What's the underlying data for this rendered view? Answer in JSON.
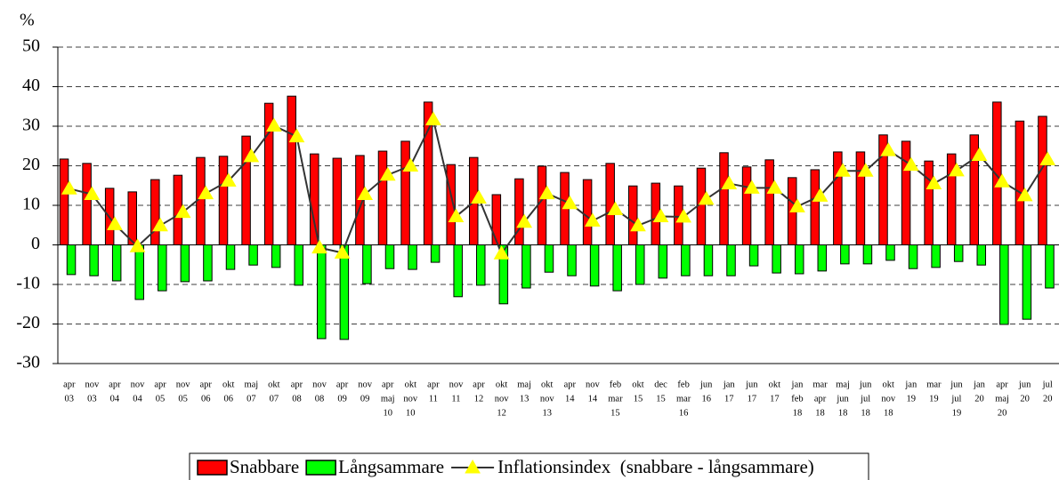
{
  "chart_data": {
    "type": "bar-line",
    "y_label": "%",
    "categories": [
      [
        "apr",
        "03"
      ],
      [
        "nov",
        "03"
      ],
      [
        "apr",
        "04"
      ],
      [
        "nov",
        "04"
      ],
      [
        "apr",
        "05"
      ],
      [
        "nov",
        "05"
      ],
      [
        "apr",
        "06"
      ],
      [
        "okt",
        "06"
      ],
      [
        "maj",
        "07"
      ],
      [
        "okt",
        "07"
      ],
      [
        "apr",
        "08"
      ],
      [
        "nov",
        "08"
      ],
      [
        "apr",
        "09"
      ],
      [
        "nov",
        "09"
      ],
      [
        "apr",
        "maj",
        "10"
      ],
      [
        "okt",
        "nov",
        "10"
      ],
      [
        "apr",
        "11"
      ],
      [
        "nov",
        "11"
      ],
      [
        "apr",
        "12"
      ],
      [
        "okt",
        "nov",
        "12"
      ],
      [
        "maj",
        "13"
      ],
      [
        "okt",
        "nov",
        "13"
      ],
      [
        "apr",
        "14"
      ],
      [
        "nov",
        "14"
      ],
      [
        "feb",
        "mar",
        "15"
      ],
      [
        "okt",
        "15"
      ],
      [
        "dec",
        "15"
      ],
      [
        "feb",
        "mar",
        "16"
      ],
      [
        "jun",
        "16"
      ],
      [
        "jan",
        "17"
      ],
      [
        "jun",
        "17"
      ],
      [
        "okt",
        "17"
      ],
      [
        "jan",
        "feb",
        "18"
      ],
      [
        "mar",
        "apr",
        "18"
      ],
      [
        "maj",
        "jun",
        "18"
      ],
      [
        "jun",
        "jul",
        "18"
      ],
      [
        "okt",
        "nov",
        "18"
      ],
      [
        "jan",
        "19"
      ],
      [
        "mar",
        "19"
      ],
      [
        "jun",
        "jul",
        "19"
      ],
      [
        "jan",
        "20"
      ],
      [
        "apr",
        "maj",
        "20"
      ],
      [
        "jun",
        "20"
      ],
      [
        "jul",
        "20"
      ]
    ],
    "series": [
      {
        "name": "Snabbare",
        "kind": "bar",
        "color": "#ff0000",
        "values": [
          21.7,
          20.6,
          14.3,
          13.4,
          16.5,
          17.6,
          22.1,
          22.4,
          27.5,
          35.8,
          37.6,
          23.0,
          21.9,
          22.6,
          23.7,
          26.2,
          36.1,
          20.3,
          22.1,
          12.7,
          16.7,
          19.9,
          18.3,
          16.5,
          20.6,
          14.9,
          15.6,
          14.9,
          19.4,
          23.3,
          19.7,
          21.5,
          17.0,
          19.0,
          23.5,
          23.5,
          27.8,
          26.2,
          21.2,
          23.0,
          27.8,
          36.1,
          31.3,
          32.5
        ]
      },
      {
        "name": "Långsammare",
        "kind": "bar",
        "color": "#00ff00",
        "values": [
          -7.5,
          -7.8,
          -9.1,
          -13.8,
          -11.6,
          -9.3,
          -9.1,
          -6.2,
          -5.1,
          -5.7,
          -10.2,
          -23.7,
          -23.9,
          -9.8,
          -6.0,
          -6.2,
          -4.4,
          -13.1,
          -10.2,
          -14.9,
          -10.9,
          -6.9,
          -7.8,
          -10.4,
          -11.6,
          -10.0,
          -8.4,
          -7.8,
          -7.8,
          -7.8,
          -5.3,
          -7.1,
          -7.3,
          -6.6,
          -4.8,
          -4.8,
          -3.9,
          -6.0,
          -5.7,
          -4.2,
          -5.1,
          -20.1,
          -18.8,
          -10.9
        ]
      },
      {
        "name": "Inflationsindex  (snabbare - långsammare)",
        "kind": "line",
        "color": "#333333",
        "marker_color": "#ffff00",
        "values": [
          14.2,
          12.8,
          5.2,
          -0.4,
          4.9,
          8.3,
          13.0,
          16.2,
          22.4,
          30.1,
          27.4,
          -0.7,
          -2.0,
          12.8,
          17.7,
          20.0,
          31.7,
          7.2,
          11.9,
          -2.2,
          5.8,
          13.0,
          10.5,
          6.1,
          9.0,
          4.9,
          7.2,
          7.1,
          11.6,
          15.5,
          14.4,
          14.4,
          9.7,
          12.4,
          18.7,
          18.7,
          23.9,
          20.2,
          15.5,
          18.8,
          22.7,
          16.0,
          12.5,
          21.6
        ]
      }
    ],
    "ylim": [
      -30,
      50
    ],
    "yticks": [
      -30,
      -20,
      -10,
      0,
      10,
      20,
      30,
      40,
      50
    ],
    "grid": true,
    "legend": "bottom"
  }
}
